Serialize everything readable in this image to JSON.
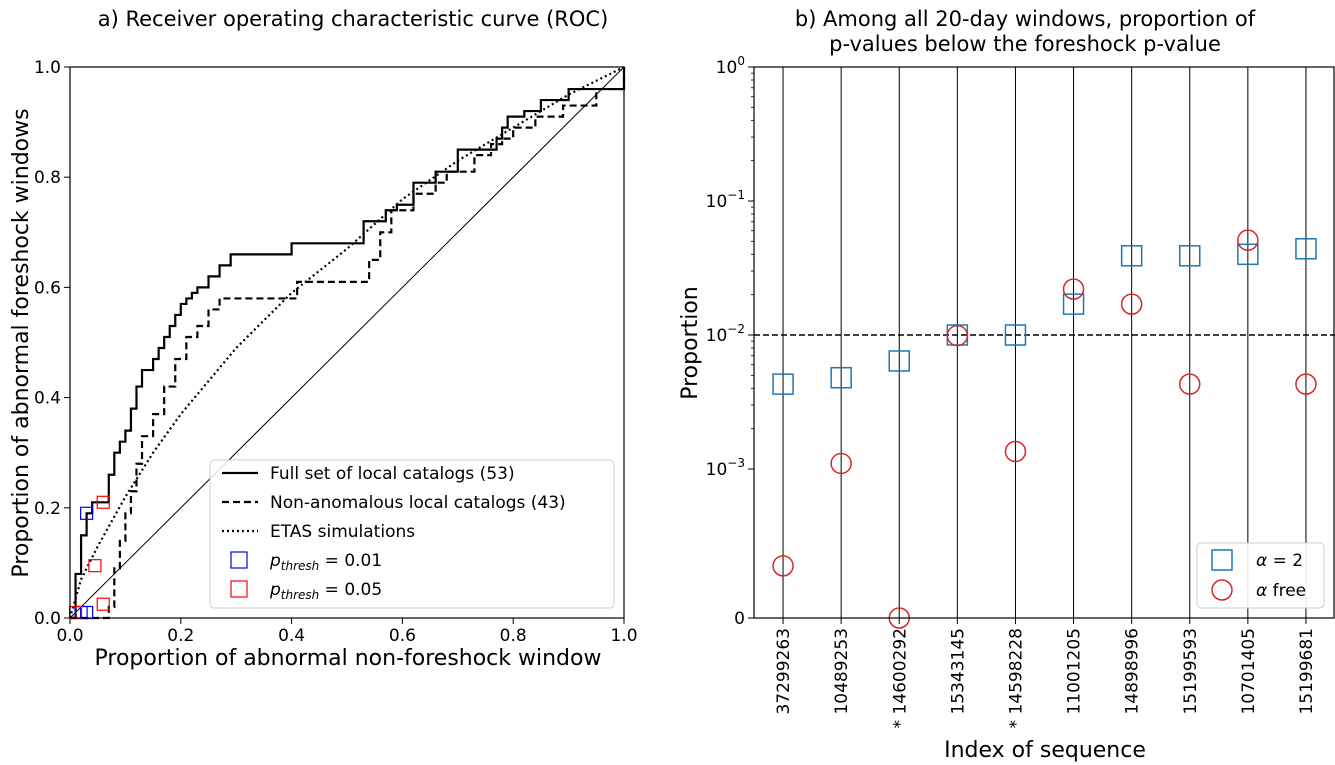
{
  "colors": {
    "roc_line": "#000000",
    "p_thresh_001": "#0000ff",
    "p_thresh_005": "#ff0000",
    "alpha_2": "#1f77b4",
    "alpha_free": "#d62728",
    "threshold": "#000000"
  },
  "chart_data": [
    {
      "type": "line",
      "title": "a) Receiver operating characteristic curve (ROC)",
      "xlabel": "Proportion of abnormal non-foreshock window",
      "ylabel": "Proportion of abnormal foreshock windows",
      "xlim": [
        0,
        1
      ],
      "ylim": [
        0,
        1
      ],
      "xticks": [
        "0.0",
        "0.2",
        "0.4",
        "0.6",
        "0.8",
        "1.0"
      ],
      "yticks": [
        "0.0",
        "0.2",
        "0.4",
        "0.6",
        "0.8",
        "1.0"
      ],
      "grid": false,
      "legend_position": "lower-right",
      "series": [
        {
          "name": "Full set of local catalogs (53)",
          "style": "solid",
          "x": [
            0,
            0.01,
            0.02,
            0.03,
            0.04,
            0.06,
            0.07,
            0.08,
            0.09,
            0.1,
            0.11,
            0.12,
            0.13,
            0.14,
            0.15,
            0.16,
            0.17,
            0.18,
            0.19,
            0.2,
            0.21,
            0.22,
            0.23,
            0.25,
            0.27,
            0.28,
            0.29,
            0.39,
            0.4,
            0.52,
            0.53,
            0.57,
            0.59,
            0.62,
            0.66,
            0.7,
            0.72,
            0.75,
            0.77,
            0.78,
            0.79,
            0.82,
            0.85,
            0.9,
            1.0
          ],
          "y": [
            0,
            0.08,
            0.15,
            0.19,
            0.21,
            0.21,
            0.26,
            0.3,
            0.32,
            0.34,
            0.38,
            0.42,
            0.45,
            0.45,
            0.47,
            0.49,
            0.51,
            0.53,
            0.55,
            0.57,
            0.58,
            0.59,
            0.6,
            0.62,
            0.64,
            0.64,
            0.66,
            0.66,
            0.68,
            0.68,
            0.72,
            0.74,
            0.75,
            0.79,
            0.81,
            0.85,
            0.85,
            0.85,
            0.87,
            0.89,
            0.91,
            0.92,
            0.94,
            0.96,
            1.0
          ]
        },
        {
          "name": "Non-anomalous local catalogs (43)",
          "style": "dashed",
          "x": [
            0,
            0.02,
            0.04,
            0.06,
            0.07,
            0.08,
            0.09,
            0.1,
            0.11,
            0.12,
            0.13,
            0.15,
            0.17,
            0.19,
            0.21,
            0.22,
            0.23,
            0.25,
            0.27,
            0.29,
            0.38,
            0.41,
            0.52,
            0.54,
            0.56,
            0.58,
            0.62,
            0.66,
            0.68,
            0.73,
            0.76,
            0.78,
            0.8,
            0.84,
            0.89,
            0.95,
            1.0
          ],
          "y": [
            0,
            0,
            0,
            0,
            0.02,
            0.09,
            0.14,
            0.19,
            0.23,
            0.28,
            0.33,
            0.37,
            0.42,
            0.47,
            0.51,
            0.51,
            0.53,
            0.56,
            0.58,
            0.58,
            0.58,
            0.61,
            0.61,
            0.65,
            0.7,
            0.74,
            0.77,
            0.79,
            0.81,
            0.84,
            0.86,
            0.87,
            0.89,
            0.91,
            0.93,
            0.96,
            1.0
          ]
        },
        {
          "name": "ETAS simulations",
          "style": "dotted",
          "x": [
            0,
            0.02,
            0.05,
            0.1,
            0.15,
            0.2,
            0.25,
            0.3,
            0.35,
            0.4,
            0.5,
            0.6,
            0.7,
            0.8,
            0.9,
            1.0
          ],
          "y": [
            0,
            0.07,
            0.13,
            0.22,
            0.3,
            0.37,
            0.43,
            0.49,
            0.54,
            0.59,
            0.67,
            0.76,
            0.83,
            0.89,
            0.95,
            1.0
          ]
        },
        {
          "name": "y = x",
          "style": "thin",
          "x": [
            0,
            1
          ],
          "y": [
            0,
            1
          ]
        }
      ],
      "markers": [
        {
          "name": "p_thresh_001",
          "legend_base": "p",
          "legend_sub": "thresh",
          "legend_value": " = 0.01",
          "points": [
            [
              0.03,
              0.19
            ],
            [
              0.02,
              0.01
            ],
            [
              0.03,
              0.01
            ]
          ]
        },
        {
          "name": "p_thresh_005",
          "legend_base": "p",
          "legend_sub": "thresh",
          "legend_value": " = 0.05",
          "points": [
            [
              0.06,
              0.21
            ],
            [
              0.045,
              0.095
            ],
            [
              0.06,
              0.025
            ],
            [
              0.01,
              0.01
            ]
          ]
        }
      ]
    },
    {
      "type": "scatter",
      "title_line1": "b) Among all 20-day windows, proportion of",
      "title_line2": "p-values below the foreshock p-value",
      "xlabel": "Index of sequence",
      "ylabel": "Proportion",
      "y_scale": "symlog",
      "ylim": [
        0,
        1
      ],
      "yticks": [
        {
          "value": 0,
          "base": "0",
          "exp": ""
        },
        {
          "value": 0.001,
          "base": "10",
          "exp": "−3"
        },
        {
          "value": 0.01,
          "base": "10",
          "exp": "−2"
        },
        {
          "value": 0.1,
          "base": "10",
          "exp": "−1"
        },
        {
          "value": 1,
          "base": "10",
          "exp": "0"
        }
      ],
      "threshold_line": 0.01,
      "grid": "vertical",
      "legend_position": "lower-right",
      "categories": [
        "37299263",
        "10489253",
        "* 14600292",
        "15343145",
        "* 14598228",
        "11001205",
        "14898996",
        "15199593",
        "10701405",
        "15199681"
      ],
      "series": [
        {
          "name": "α = 2",
          "legend_italic": "α",
          "legend_rest": " = 2",
          "marker": "square",
          "values": [
            0.0043,
            0.0048,
            0.0064,
            0.01,
            0.01,
            0.017,
            0.039,
            0.039,
            0.04,
            0.044
          ]
        },
        {
          "name": "α free",
          "legend_italic": "α",
          "legend_rest": " free",
          "marker": "circle",
          "values": [
            0.00035,
            0.0011,
            0,
            0.0099,
            0.00135,
            0.022,
            0.017,
            0.0043,
            0.051,
            0.0043
          ]
        }
      ]
    }
  ]
}
